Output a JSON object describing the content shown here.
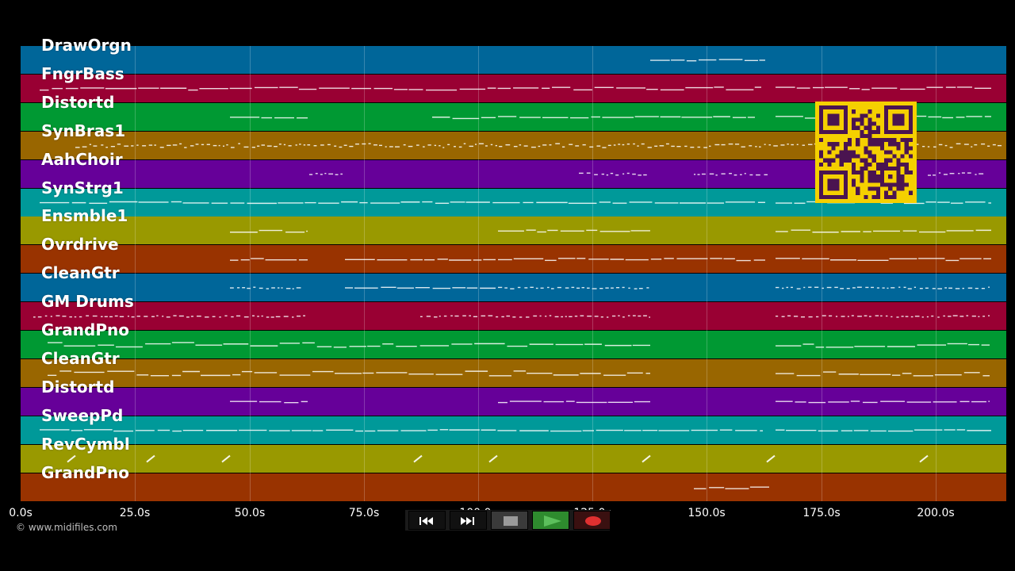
{
  "tracks": [
    {
      "label": "DrawOrgn",
      "color": "#006699"
    },
    {
      "label": "FngrBass",
      "color": "#990033"
    },
    {
      "label": "Distortd",
      "color": "#009933"
    },
    {
      "label": "SynBras1",
      "color": "#996600"
    },
    {
      "label": "AahChoir",
      "color": "#660099"
    },
    {
      "label": "SynStrg1",
      "color": "#009999"
    },
    {
      "label": "Ensmble1",
      "color": "#999900"
    },
    {
      "label": "Ovrdrive",
      "color": "#993300"
    },
    {
      "label": "CleanGtr",
      "color": "#006699"
    },
    {
      "label": "GM Drums",
      "color": "#990033"
    },
    {
      "label": "GrandPno",
      "color": "#009933"
    },
    {
      "label": "CleanGtr",
      "color": "#996600"
    },
    {
      "label": "Distortd",
      "color": "#660099"
    },
    {
      "label": "SweepPd",
      "color": "#009999"
    },
    {
      "label": "RevCymbl",
      "color": "#999900"
    },
    {
      "label": "GrandPno",
      "color": "#993300"
    }
  ],
  "timeline": {
    "ticks": [
      "0.0s",
      "25.0s",
      "50.0s",
      "75.0s",
      "100.0s",
      "125.0s",
      "150.0s",
      "175.0s",
      "200.0s"
    ]
  },
  "credit": "© www.midifiles.com",
  "transport": {
    "rewind_icon": "rewind-icon",
    "fast_forward_icon": "fast-forward-icon",
    "stop_icon": "stop-icon",
    "play_icon": "play-icon",
    "record_icon": "record-icon",
    "play_color": "#2e8b2e",
    "record_color": "#e03030"
  },
  "qr_colors": {
    "bg": "#f5d000",
    "fg": "#4a1450"
  }
}
